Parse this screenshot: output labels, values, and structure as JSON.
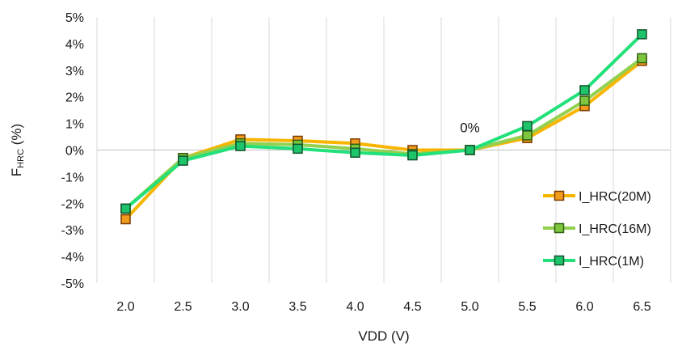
{
  "chart_data": {
    "type": "line",
    "title": "",
    "xlabel": "VDD (V)",
    "ylabel_main": "F",
    "ylabel_sub": "HRC",
    "ylabel_suffix": " (%)",
    "x": [
      2.0,
      2.5,
      3.0,
      3.5,
      4.0,
      4.5,
      5.0,
      5.5,
      6.0,
      6.5
    ],
    "x_tick_labels": [
      "2.0",
      "2.5",
      "3.0",
      "3.5",
      "4.0",
      "4.5",
      "5.0",
      "5.5",
      "6.0",
      "6.5"
    ],
    "ylim": [
      -5,
      5
    ],
    "y_ticks": [
      5,
      4,
      3,
      2,
      1,
      0,
      -1,
      -2,
      -3,
      -4,
      -5
    ],
    "y_tick_labels": [
      "5%",
      "4%",
      "3%",
      "2%",
      "1%",
      "0%",
      "-1%",
      "-2%",
      "-3%",
      "-4%",
      "-5%"
    ],
    "grid": "vertical-x",
    "legend_position": "right",
    "annotations": [
      {
        "text": "0%",
        "x": 5.0,
        "y": 0
      }
    ],
    "series": [
      {
        "name": "I_HRC(20M)",
        "line_color": "#f7b500",
        "marker_fill": "#f29a1c",
        "marker_edge": "#7a3b00",
        "values": [
          -2.6,
          -0.3,
          0.4,
          0.35,
          0.25,
          0.0,
          0.0,
          0.45,
          1.65,
          3.35
        ]
      },
      {
        "name": "I_HRC(16M)",
        "line_color": "#92d050",
        "marker_fill": "#7fc63f",
        "marker_edge": "#2f5f10",
        "values": [
          -2.2,
          -0.3,
          0.25,
          0.2,
          0.05,
          -0.15,
          0.0,
          0.55,
          1.85,
          3.45
        ]
      },
      {
        "name": "I_HRC(1M)",
        "line_color": "#22e07a",
        "marker_fill": "#1ec46a",
        "marker_edge": "#10532c",
        "values": [
          -2.2,
          -0.4,
          0.15,
          0.05,
          -0.1,
          -0.2,
          0.0,
          0.9,
          2.25,
          4.35
        ]
      }
    ]
  }
}
